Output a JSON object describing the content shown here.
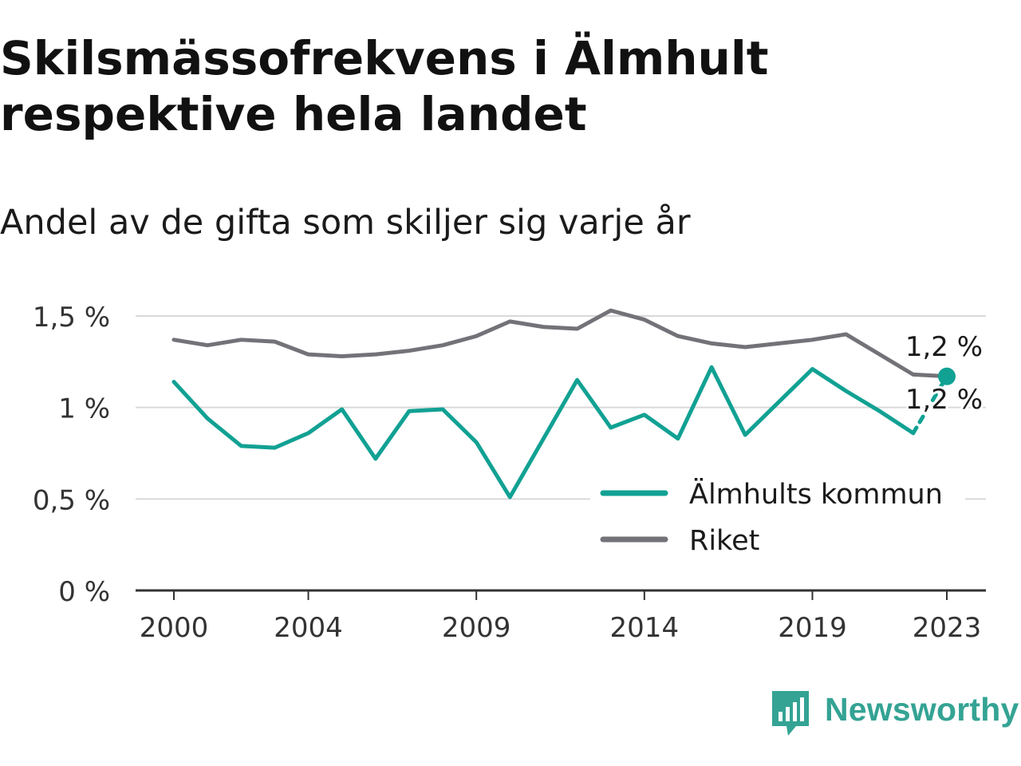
{
  "title": "Skilsmässofrekvens i Älmhult respektive hela landet",
  "subtitle": "Andel av de gifta som skiljer sig varje år",
  "brand": {
    "name": "Newsworthy",
    "icon": "newsworthy-logo-icon",
    "color": "#34a394"
  },
  "chart_data": {
    "type": "line",
    "x": [
      2000,
      2001,
      2002,
      2003,
      2004,
      2005,
      2006,
      2007,
      2008,
      2009,
      2010,
      2011,
      2012,
      2013,
      2014,
      2015,
      2016,
      2017,
      2018,
      2019,
      2020,
      2021,
      2022,
      2023
    ],
    "x_ticks": [
      "2000",
      "2004",
      "2009",
      "2014",
      "2019",
      "2023"
    ],
    "y_ticks": [
      "0 %",
      "0,5 %",
      "1 %",
      "1,5 %"
    ],
    "ylim": [
      0,
      1.5
    ],
    "grid": true,
    "legend_position": "bottom-right",
    "series": [
      {
        "name": "Älmhults kommun",
        "color": "#11a193",
        "values": [
          1.14,
          0.94,
          0.79,
          0.78,
          0.86,
          0.99,
          0.72,
          0.98,
          0.99,
          0.81,
          0.51,
          0.83,
          1.15,
          0.89,
          0.96,
          0.83,
          1.22,
          0.85,
          1.03,
          1.21,
          1.09,
          0.98,
          0.86,
          1.17
        ],
        "end_label": "1,2 %"
      },
      {
        "name": "Riket",
        "color": "#737278",
        "values": [
          1.37,
          1.34,
          1.37,
          1.36,
          1.29,
          1.28,
          1.29,
          1.31,
          1.34,
          1.39,
          1.47,
          1.44,
          1.43,
          1.53,
          1.48,
          1.39,
          1.35,
          1.33,
          1.35,
          1.37,
          1.4,
          1.29,
          1.18,
          1.17
        ],
        "end_label": "1,2 %"
      }
    ]
  }
}
